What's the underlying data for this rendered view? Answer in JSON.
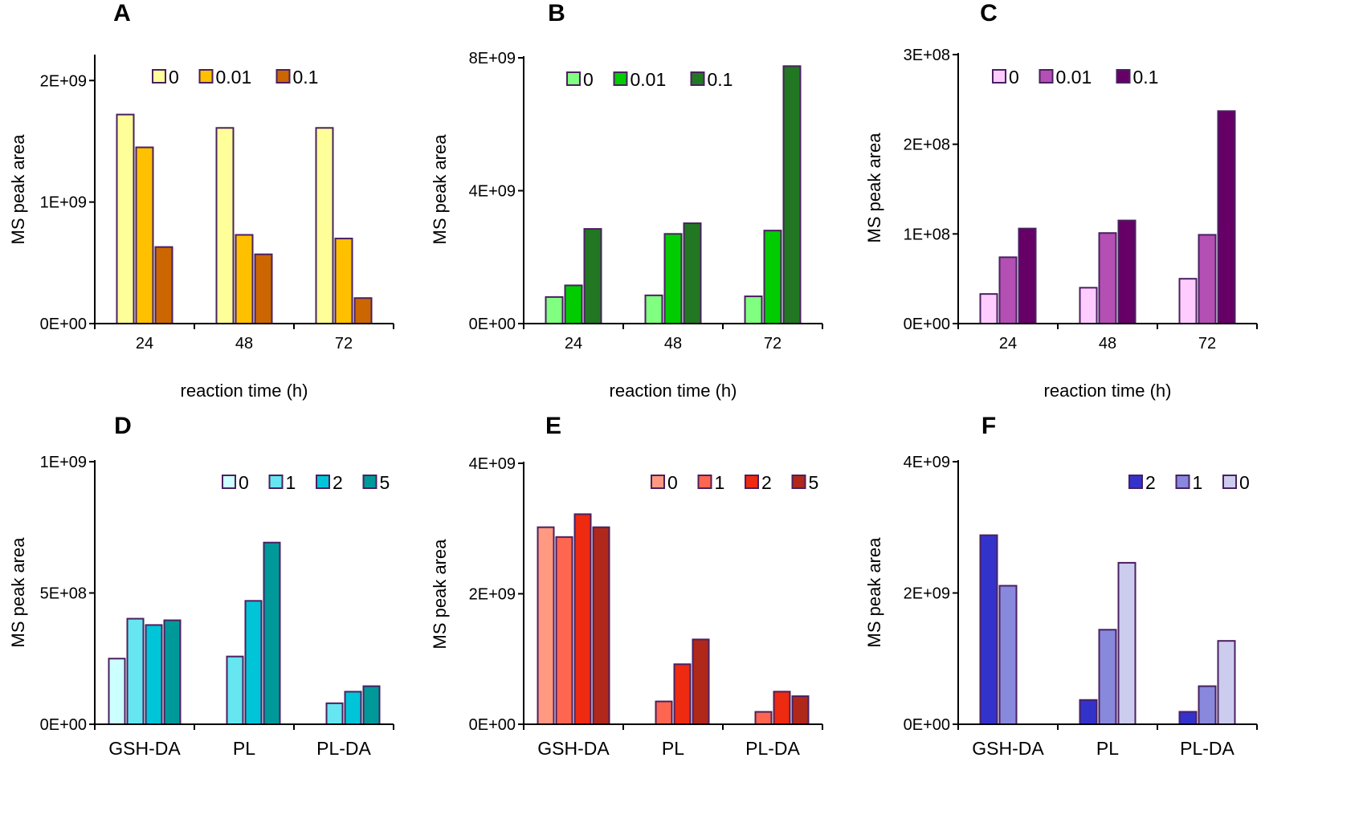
{
  "chart_data": [
    {
      "panel": "A",
      "type": "bar",
      "categories": [
        "24",
        "48",
        "72"
      ],
      "xlabel": "reaction time (h)",
      "ylabel": "MS peak area",
      "ylim": [
        0,
        2200000000
      ],
      "yticks": [
        0,
        1000000000,
        2000000000
      ],
      "ytick_labels": [
        "0E+00",
        "1E+09",
        "2E+09"
      ],
      "legend_position": "top-center",
      "series": [
        {
          "name": "0",
          "color": "#ffff99",
          "values": [
            1720000000,
            1610000000,
            1610000000
          ]
        },
        {
          "name": "0.01",
          "color": "#ffc000",
          "values": [
            1450000000,
            730000000,
            700000000
          ]
        },
        {
          "name": "0.1",
          "color": "#cc6600",
          "values": [
            630000000,
            570000000,
            210000000
          ]
        }
      ]
    },
    {
      "panel": "B",
      "type": "bar",
      "categories": [
        "24",
        "48",
        "72"
      ],
      "xlabel": "reaction time (h)",
      "ylabel": "MS peak area",
      "ylim": [
        0,
        8000000000
      ],
      "yticks": [
        0,
        4000000000,
        8000000000
      ],
      "ytick_labels": [
        "0E+00",
        "4E+09",
        "8E+09"
      ],
      "legend_position": "top-center",
      "series": [
        {
          "name": "0",
          "color": "#80ff80",
          "values": [
            800000000,
            850000000,
            820000000
          ]
        },
        {
          "name": "0.01",
          "color": "#00cc00",
          "values": [
            1150000000,
            2700000000,
            2800000000
          ]
        },
        {
          "name": "0.1",
          "color": "#227722",
          "values": [
            2850000000,
            3020000000,
            7750000000
          ]
        }
      ]
    },
    {
      "panel": "C",
      "type": "bar",
      "categories": [
        "24",
        "48",
        "72"
      ],
      "xlabel": "reaction time (h)",
      "ylabel": "MS peak area",
      "ylim": [
        0,
        300000000
      ],
      "yticks": [
        0,
        100000000,
        200000000,
        300000000
      ],
      "ytick_labels": [
        "0E+00",
        "1E+08",
        "2E+08",
        "3E+08"
      ],
      "legend_position": "top-center",
      "series": [
        {
          "name": "0",
          "color": "#ffccff",
          "values": [
            33000000,
            40000000,
            50000000
          ]
        },
        {
          "name": "0.01",
          "color": "#b44fb4",
          "values": [
            74000000,
            101000000,
            99000000
          ]
        },
        {
          "name": "0.1",
          "color": "#660066",
          "values": [
            106000000,
            115000000,
            237000000
          ]
        }
      ]
    },
    {
      "panel": "D",
      "type": "bar",
      "categories": [
        "GSH-DA",
        "PL",
        "PL-DA"
      ],
      "xlabel": "",
      "ylabel": "MS peak area",
      "ylim": [
        0,
        1000000000
      ],
      "yticks": [
        0,
        500000000,
        1000000000
      ],
      "ytick_labels": [
        "0E+00",
        "5E+08",
        "1E+09"
      ],
      "legend_position": "top-right",
      "series": [
        {
          "name": "0",
          "color": "#ccffff",
          "values": [
            250000000,
            null,
            null
          ]
        },
        {
          "name": "1",
          "color": "#66e6f0",
          "values": [
            402000000,
            258000000,
            80000000
          ]
        },
        {
          "name": "2",
          "color": "#00c4d8",
          "values": [
            378000000,
            470000000,
            124000000
          ]
        },
        {
          "name": "5",
          "color": "#009999",
          "values": [
            396000000,
            692000000,
            145000000
          ]
        }
      ]
    },
    {
      "panel": "E",
      "type": "bar",
      "categories": [
        "GSH-DA",
        "PL",
        "PL-DA"
      ],
      "xlabel": "",
      "ylabel": "MS peak area",
      "ylim": [
        0,
        4000000000
      ],
      "yticks": [
        0,
        2000000000,
        4000000000
      ],
      "ytick_labels": [
        "0E+00",
        "2E+09",
        "4E+09"
      ],
      "legend_position": "top-right",
      "series": [
        {
          "name": "0",
          "color": "#ff9980",
          "values": [
            3020000000,
            null,
            null
          ]
        },
        {
          "name": "1",
          "color": "#ff6650",
          "values": [
            2870000000,
            350000000,
            190000000
          ]
        },
        {
          "name": "2",
          "color": "#ee2a10",
          "values": [
            3220000000,
            920000000,
            500000000
          ]
        },
        {
          "name": "5",
          "color": "#b0281a",
          "values": [
            3020000000,
            1300000000,
            430000000
          ]
        }
      ]
    },
    {
      "panel": "F",
      "type": "bar",
      "categories": [
        "GSH-DA",
        "PL",
        "PL-DA"
      ],
      "xlabel": "",
      "ylabel": "MS peak area",
      "ylim": [
        0,
        4000000000
      ],
      "yticks": [
        0,
        2000000000,
        4000000000
      ],
      "ytick_labels": [
        "0E+00",
        "2E+09",
        "4E+09"
      ],
      "legend_position": "top-right",
      "series": [
        {
          "name": "2",
          "color": "#3333cc",
          "values": [
            2880000000,
            370000000,
            190000000
          ]
        },
        {
          "name": "1",
          "color": "#8888dd",
          "values": [
            2110000000,
            1440000000,
            580000000
          ]
        },
        {
          "name": "0",
          "color": "#ccccee",
          "values": [
            null,
            2460000000,
            1270000000
          ]
        }
      ]
    }
  ]
}
